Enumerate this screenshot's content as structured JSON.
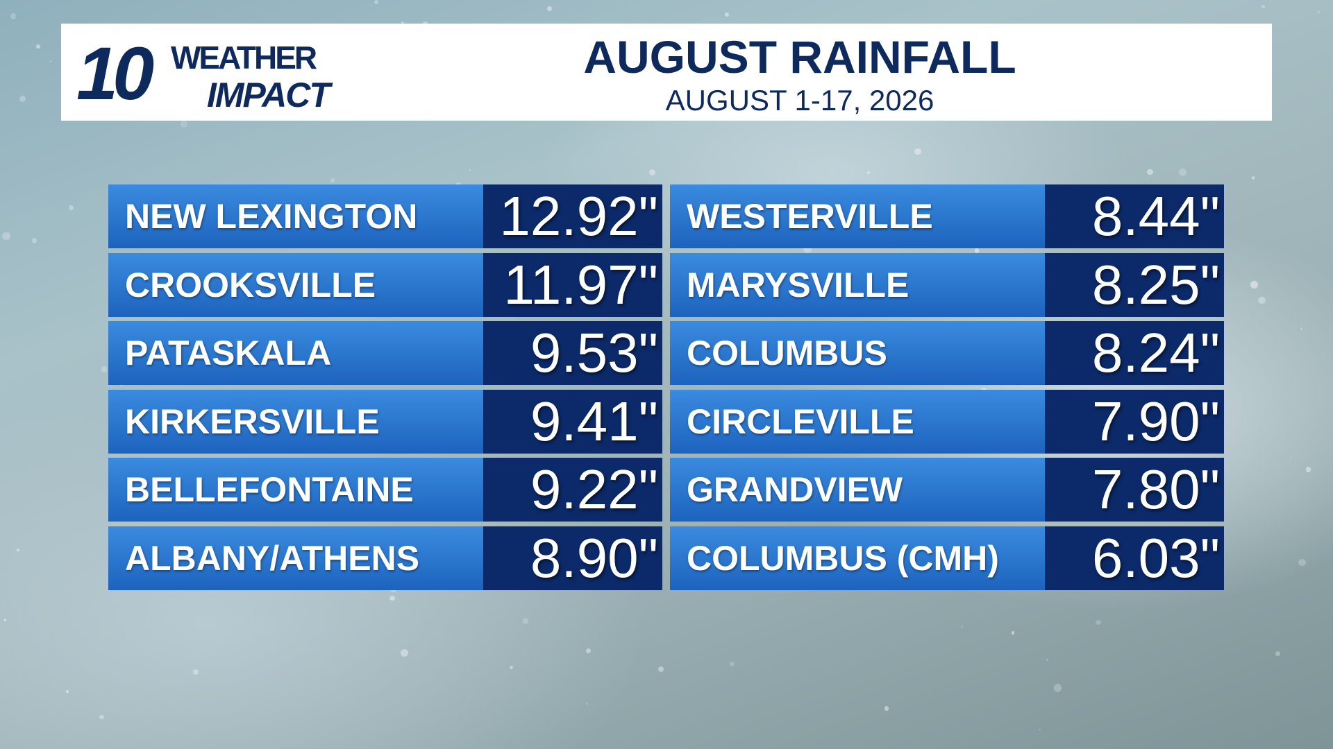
{
  "header": {
    "logo": {
      "number": "10",
      "line1": "WEATHER",
      "line2": "IMPACT"
    },
    "title": "AUGUST RAINFALL",
    "subtitle": "AUGUST 1-17, 2026"
  },
  "table": {
    "columns": [
      {
        "rows": [
          {
            "location": "NEW LEXINGTON",
            "rainfall": "12.92\""
          },
          {
            "location": "CROOKSVILLE",
            "rainfall": "11.97\""
          },
          {
            "location": "PATASKALA",
            "rainfall": "9.53\""
          },
          {
            "location": "KIRKERSVILLE",
            "rainfall": "9.41\""
          },
          {
            "location": "BELLEFONTAINE",
            "rainfall": "9.22\""
          },
          {
            "location": "ALBANY/ATHENS",
            "rainfall": "8.90\""
          }
        ]
      },
      {
        "rows": [
          {
            "location": "WESTERVILLE",
            "rainfall": "8.44\""
          },
          {
            "location": "MARYSVILLE",
            "rainfall": "8.25\""
          },
          {
            "location": "COLUMBUS",
            "rainfall": "8.24\""
          },
          {
            "location": "CIRCLEVILLE",
            "rainfall": "7.90\""
          },
          {
            "location": "GRANDVIEW",
            "rainfall": "7.80\""
          },
          {
            "location": "COLUMBUS (CMH)",
            "rainfall": "6.03\""
          }
        ]
      }
    ]
  }
}
